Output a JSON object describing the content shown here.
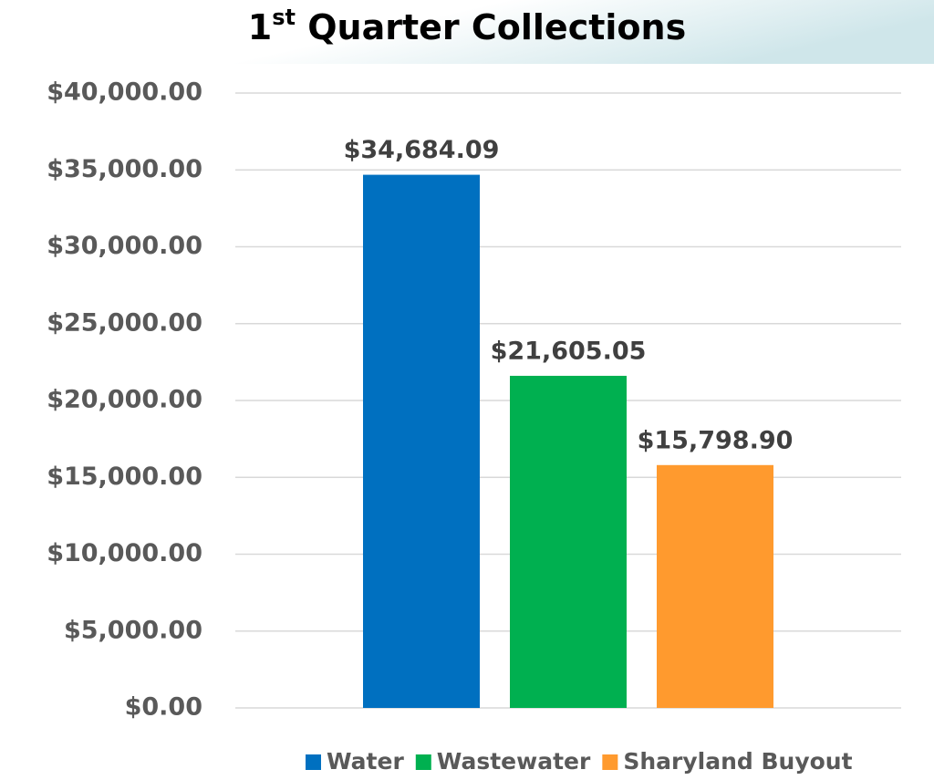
{
  "chart_data": {
    "type": "bar",
    "title": "1st Quarter Collections",
    "categories": [
      null
    ],
    "series": [
      {
        "name": "Water",
        "color": "#0070c0",
        "values": [
          34684.09
        ],
        "value_labels": [
          "$34,684.09"
        ]
      },
      {
        "name": "Wastewater",
        "color": "#00b050",
        "values": [
          21605.05
        ],
        "value_labels": [
          "$21,605.05"
        ]
      },
      {
        "name": "Sharyland Buyout",
        "color": "#ff9a2e",
        "values": [
          15798.9
        ],
        "value_labels": [
          "$15,798.90"
        ]
      }
    ],
    "ylim": [
      0,
      40000
    ],
    "yticks": [
      {
        "value": 0,
        "label": "$0.00"
      },
      {
        "value": 5000,
        "label": "$5,000.00"
      },
      {
        "value": 10000,
        "label": "$10,000.00"
      },
      {
        "value": 15000,
        "label": "$15,000.00"
      },
      {
        "value": 20000,
        "label": "$20,000.00"
      },
      {
        "value": 25000,
        "label": "$25,000.00"
      },
      {
        "value": 30000,
        "label": "$30,000.00"
      },
      {
        "value": 35000,
        "label": "$35,000.00"
      },
      {
        "value": 40000,
        "label": "$40,000.00"
      }
    ],
    "grid": true,
    "legend": "bottom"
  }
}
